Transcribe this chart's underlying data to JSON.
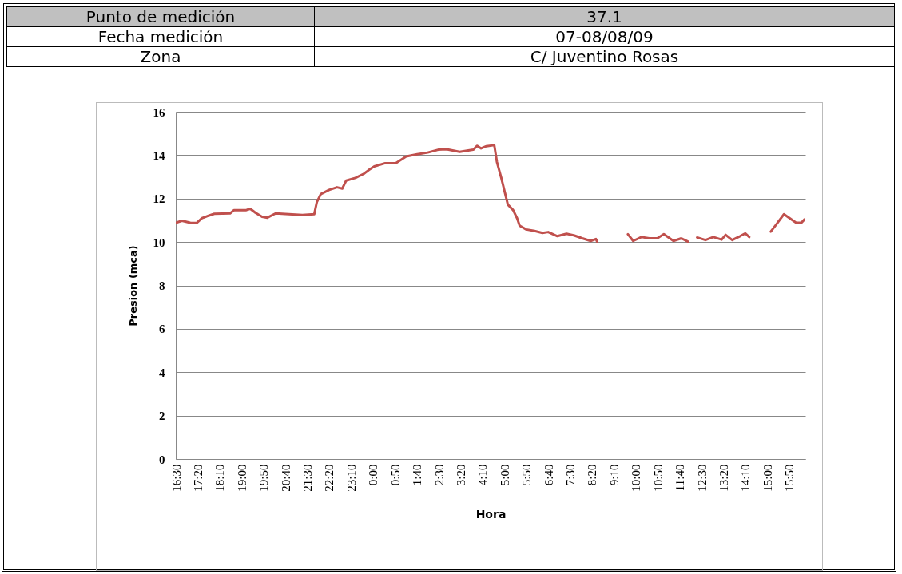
{
  "chart_data": {
    "type": "line",
    "annotations": [
      "Punto de medición",
      "37.1",
      "Fecha medición",
      "07-08/08/09",
      "Zona",
      "C/ Juventino Rosas"
    ],
    "xlabel": "Hora",
    "ylabel": "Presion (mca)",
    "x": [
      "--08-07T16:30",
      "--08-07T16:44",
      "--08-07T17:03",
      "--08-07T17:18",
      "--08-07T17:30",
      "--08-07T17:46",
      "--08-07T17:58",
      "--08-07T18:34",
      "--08-07T18:43",
      "--08-07T19:11",
      "--08-07T19:20",
      "--08-07T19:32",
      "--08-07T19:47",
      "--08-07T19:59",
      "--08-07T20:18",
      "--08-07T20:48",
      "--08-07T21:19",
      "--08-07T21:46",
      "--08-07T21:52",
      "--08-07T22:01",
      "--08-07T22:20",
      "--08-07T22:38",
      "--08-07T22:50",
      "--08-07T22:59",
      "--08-07T23:20",
      "--08-07T23:39",
      "--08-07T23:51",
      "--08-08T00:03",
      "--08-08T00:28",
      "--08-08T00:52",
      "--08-08T01:16",
      "--08-08T01:41",
      "--08-08T02:05",
      "--08-08T02:29",
      "--08-08T02:48",
      "--08-08T03:18",
      "--08-08T03:49",
      "--08-08T03:58",
      "--08-08T04:07",
      "--08-08T04:19",
      "--08-08T04:37",
      "--08-08T04:43",
      "--08-08T04:53",
      "--08-08T05:08",
      "--08-08T05:20",
      "--08-08T05:29",
      "--08-08T05:35",
      "--08-08T05:50",
      "--08-08T06:09",
      "--08-08T06:27",
      "--08-08T06:40",
      "--08-08T07:01",
      "--08-08T07:22",
      "--08-08T07:40",
      "--08-08T07:58",
      "--08-08T08:17",
      "--08-08T08:29",
      "--08-08T08:32",
      "--08-08T09:06",
      "--08-08T09:42",
      "--08-08T09:54",
      "--08-08T10:13",
      "--08-08T10:31",
      "--08-08T10:49",
      "--08-08T11:04",
      "--08-08T11:26",
      "--08-08T11:44",
      "--08-08T11:59",
      "--08-08T12:10",
      "--08-08T12:20",
      "--08-08T12:39",
      "--08-08T12:57",
      "--08-08T13:16",
      "--08-08T13:25",
      "--08-08T13:40",
      "--08-08T13:58",
      "--08-08T14:10",
      "--08-08T14:19",
      "--08-08T14:42",
      "--08-08T15:08",
      "--08-08T15:20",
      "--08-08T15:38",
      "--08-08T15:53",
      "--08-08T16:06",
      "--08-08T16:18",
      "--08-08T16:25"
    ],
    "series": [
      {
        "color": "#c0504d",
        "values": [
          10.88,
          10.98,
          10.89,
          10.88,
          11.1,
          11.22,
          11.3,
          11.32,
          11.47,
          11.47,
          11.53,
          11.35,
          11.16,
          11.12,
          11.32,
          11.28,
          11.25,
          11.28,
          11.84,
          12.21,
          12.4,
          12.52,
          12.46,
          12.83,
          12.95,
          13.14,
          13.32,
          13.48,
          13.63,
          13.63,
          13.94,
          14.04,
          14.12,
          14.25,
          14.27,
          14.15,
          14.25,
          14.43,
          14.31,
          14.41,
          14.46,
          13.69,
          12.95,
          11.72,
          11.47,
          11.1,
          10.75,
          10.58,
          10.51,
          10.42,
          10.46,
          10.27,
          10.38,
          10.3,
          10.17,
          10.05,
          10.14,
          10.01,
          null,
          10.36,
          10.05,
          10.23,
          10.17,
          10.17,
          10.36,
          10.05,
          10.17,
          10.02,
          null,
          10.21,
          10.09,
          10.23,
          10.11,
          10.33,
          10.09,
          10.27,
          10.4,
          10.23,
          null,
          10.48,
          10.79,
          11.28,
          11.07,
          10.89,
          10.89,
          11.04
        ]
      }
    ],
    "xlim": [
      "--08-07T16:30",
      "--08-08T16:27"
    ],
    "xticks": [
      {
        "value": "--08-07T16:30",
        "label": "16:30"
      },
      {
        "value": "--08-07T17:20",
        "label": "17:20"
      },
      {
        "value": "--08-07T18:10",
        "label": "18:10"
      },
      {
        "value": "--08-07T19:00",
        "label": "19:00"
      },
      {
        "value": "--08-07T19:50",
        "label": "19:50"
      },
      {
        "value": "--08-07T20:40",
        "label": "20:40"
      },
      {
        "value": "--08-07T21:30",
        "label": "21:30"
      },
      {
        "value": "--08-07T22:20",
        "label": "22:20"
      },
      {
        "value": "--08-07T23:10",
        "label": "23:10"
      },
      {
        "value": "--08-08T00:00",
        "label": "0:00"
      },
      {
        "value": "--08-08T00:50",
        "label": "0:50"
      },
      {
        "value": "--08-08T01:40",
        "label": "1:40"
      },
      {
        "value": "--08-08T02:30",
        "label": "2:30"
      },
      {
        "value": "--08-08T03:20",
        "label": "3:20"
      },
      {
        "value": "--08-08T04:10",
        "label": "4:10"
      },
      {
        "value": "--08-08T05:00",
        "label": "5:00"
      },
      {
        "value": "--08-08T05:50",
        "label": "5:50"
      },
      {
        "value": "--08-08T06:40",
        "label": "6:40"
      },
      {
        "value": "--08-08T07:30",
        "label": "7:30"
      },
      {
        "value": "--08-08T08:20",
        "label": "8:20"
      },
      {
        "value": "--08-08T09:10",
        "label": "9:10"
      },
      {
        "value": "--08-08T10:00",
        "label": "10:00"
      },
      {
        "value": "--08-08T10:50",
        "label": "10:50"
      },
      {
        "value": "--08-08T11:40",
        "label": "11:40"
      },
      {
        "value": "--08-08T12:30",
        "label": "12:30"
      },
      {
        "value": "--08-08T13:20",
        "label": "13:20"
      },
      {
        "value": "--08-08T14:10",
        "label": "14:10"
      },
      {
        "value": "--08-08T15:00",
        "label": "15:00"
      },
      {
        "value": "--08-08T15:50",
        "label": "15:50"
      }
    ],
    "ylim": [
      0,
      16
    ],
    "yticks": [
      0,
      2,
      4,
      6,
      8,
      10,
      12,
      14,
      16
    ],
    "grid": "y"
  }
}
